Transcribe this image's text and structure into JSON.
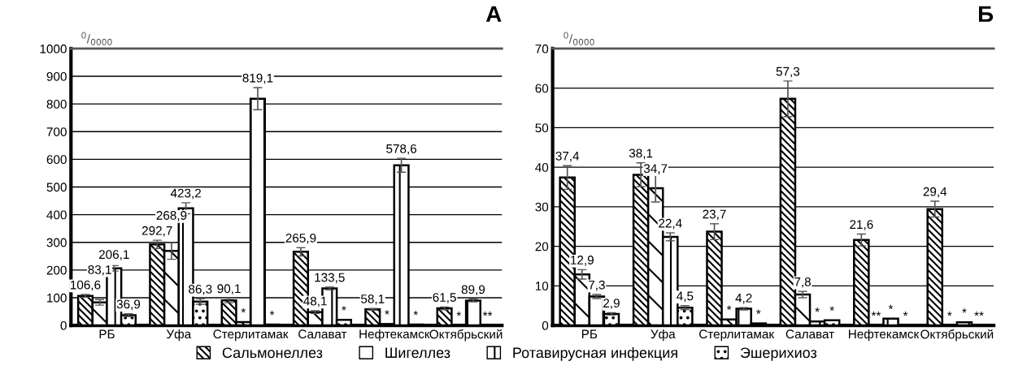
{
  "chart_data": [
    {
      "type": "bar",
      "title": "А",
      "ylabel": "$^{0}$/$_{0000}$",
      "categories": [
        "РБ",
        "Уфа",
        "Стерлитамак",
        "Салават",
        "Нефтекамск",
        "Октябрьский"
      ],
      "ylim": [
        0,
        1000
      ],
      "yticks": [
        0,
        100,
        200,
        300,
        400,
        500,
        600,
        700,
        800,
        900,
        1000
      ],
      "grid": "y",
      "legend": "bottom",
      "series": [
        {
          "name": "Сальмонеллез",
          "color": "#000000",
          "values": [
            106.6,
            292.7,
            90.1,
            265.9,
            58.1,
            61.5
          ],
          "errors": [
            5,
            15,
            8,
            15,
            3,
            5
          ],
          "value_labels": [
            "106,6",
            "292,7",
            "90,1",
            "265,9",
            "58,1",
            "61,5"
          ]
        },
        {
          "name": "Шигеллез",
          "color": "#000000",
          "values": [
            83.1,
            268.9,
            12,
            48.1,
            5,
            0
          ],
          "errors": [
            10,
            30,
            null,
            5,
            null,
            null
          ],
          "value_labels": [
            "83,1",
            "268,9",
            "*",
            "48,1",
            "*",
            "*"
          ]
        },
        {
          "name": "Ротавирусная инфекция",
          "color": "#000000",
          "values": [
            206.1,
            423.2,
            819.1,
            133.5,
            578.6,
            89.9
          ],
          "errors": [
            10,
            20,
            40,
            5,
            25,
            5
          ],
          "value_labels": [
            "206,1",
            "423,2",
            "819,1",
            "133,5",
            "578,6",
            "89,9"
          ]
        },
        {
          "name": "Эшерихиоз",
          "color": "#000000",
          "values": [
            36.9,
            86.3,
            3,
            20,
            3,
            0
          ],
          "errors": [
            5,
            10,
            null,
            null,
            null,
            null
          ],
          "value_labels": [
            "36,9",
            "86,3",
            "*",
            "*",
            "*",
            "**"
          ]
        }
      ]
    },
    {
      "type": "bar",
      "title": "Б",
      "ylabel": "$^{0}$/$_{0000}$",
      "categories": [
        "РБ",
        "Уфа",
        "Стерлитамак",
        "Салават",
        "Нефтекамск",
        "Октябрьский"
      ],
      "ylim": [
        0,
        70
      ],
      "yticks": [
        0,
        10,
        20,
        30,
        40,
        50,
        60,
        70
      ],
      "grid": "y",
      "series": [
        {
          "name": "Сальмонеллез",
          "color": "#000000",
          "values": [
            37.4,
            38.1,
            23.7,
            57.3,
            21.6,
            29.4
          ],
          "errors": [
            3,
            3,
            2,
            4.5,
            1.5,
            2
          ],
          "value_labels": [
            "37,4",
            "38,1",
            "23,7",
            "57,3",
            "21,6",
            "29,4"
          ]
        },
        {
          "name": "Шигеллез",
          "color": "#000000",
          "values": [
            12.9,
            34.7,
            1.5,
            7.8,
            0,
            0
          ],
          "errors": [
            1.2,
            3.5,
            null,
            0.8,
            null,
            null
          ],
          "value_labels": [
            "12,9",
            "34,7",
            "*",
            "7,8",
            "**",
            "*"
          ]
        },
        {
          "name": "Ротавирусная инфекция",
          "color": "#000000",
          "values": [
            7.3,
            22.4,
            4.2,
            1,
            1.7,
            0.8
          ],
          "errors": [
            0.5,
            1,
            0.3,
            null,
            null,
            null
          ],
          "value_labels": [
            "7,3",
            "22,4",
            "4,2",
            "*",
            "*",
            "*"
          ]
        },
        {
          "name": "Эшерихиоз",
          "color": "#000000",
          "values": [
            2.9,
            4.5,
            0.5,
            1.3,
            0,
            0
          ],
          "errors": [
            0.3,
            0.5,
            null,
            null,
            null,
            null
          ],
          "value_labels": [
            "2,9",
            "4,5",
            "*",
            "*",
            "*",
            "**"
          ]
        }
      ]
    }
  ]
}
